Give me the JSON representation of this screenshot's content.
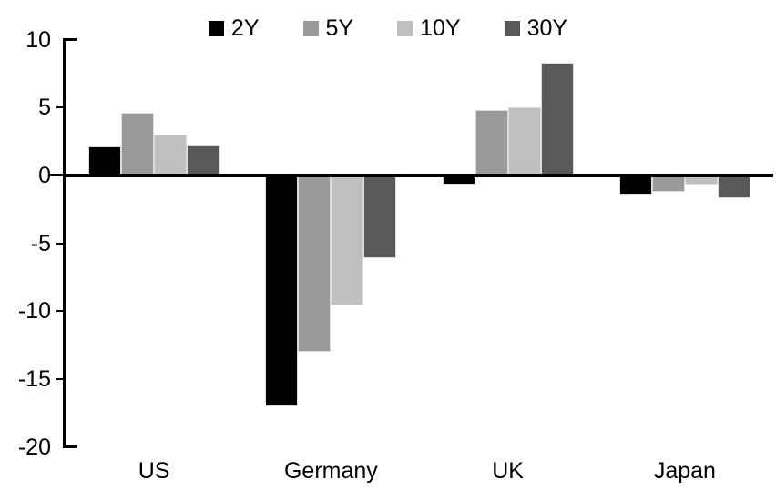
{
  "chart_data": {
    "type": "bar",
    "categories": [
      "US",
      "Germany",
      "UK",
      "Japan"
    ],
    "series": [
      {
        "name": "2Y",
        "color": "#000000",
        "values": [
          2.1,
          -17.0,
          -0.7,
          -1.4
        ]
      },
      {
        "name": "5Y",
        "color": "#999999",
        "values": [
          4.6,
          -13.0,
          4.8,
          -1.2
        ]
      },
      {
        "name": "10Y",
        "color": "#c0c0c0",
        "values": [
          3.0,
          -9.6,
          5.0,
          -0.7
        ]
      },
      {
        "name": "30Y",
        "color": "#595959",
        "values": [
          2.2,
          -6.1,
          8.3,
          -1.7
        ]
      }
    ],
    "xlabel": "",
    "ylabel": "",
    "ylim": [
      -20,
      10
    ],
    "yticks": [
      10,
      5,
      0,
      -5,
      -10,
      -15,
      -20
    ],
    "legend_position": "top",
    "grid": false,
    "axis_color": "#000000",
    "background_color": "#ffffff"
  }
}
